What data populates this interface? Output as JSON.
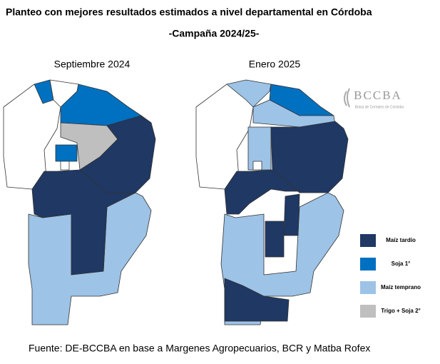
{
  "header": {
    "title": "Planteo con mejores resultados estimados a nivel departamental en Córdoba",
    "subtitle": "-Campaña 2024/25-"
  },
  "maps": [
    {
      "label": "Septiembre 2024"
    },
    {
      "label": "Enero 2025"
    }
  ],
  "legend": [
    {
      "label": "Maíz tardío",
      "color": "#1f3864"
    },
    {
      "label": "Soja 1°",
      "color": "#0070c0"
    },
    {
      "label": "Maíz temprano",
      "color": "#9dc3e6"
    },
    {
      "label": "Trigo + Soja 2°",
      "color": "#bfbfbf"
    }
  ],
  "logo": {
    "name": "BCCBA",
    "subtitle": "Bolsa de Cereales de Córdoba"
  },
  "footer": {
    "source": "Fuente: DE-BCCBA en base a Margenes Agropecuarios, BCR y Matba Rofex"
  }
}
